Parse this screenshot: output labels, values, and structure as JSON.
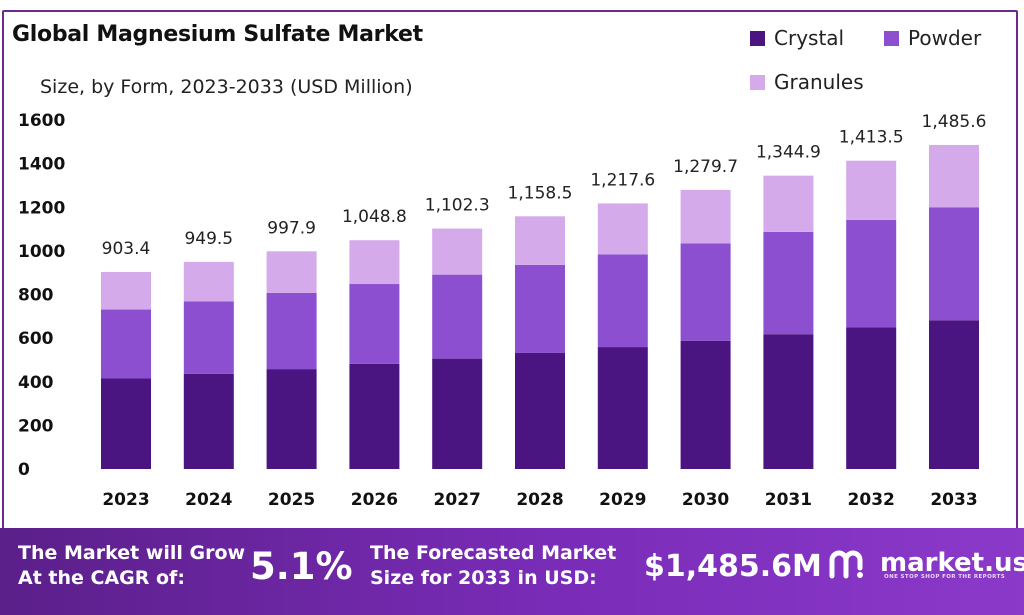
{
  "title": "Global Magnesium Sulfate Market",
  "subtitle": "Size, by Form, 2023-2033 (USD Million)",
  "colors": {
    "crystal": "#4a1580",
    "powder": "#8b4fcf",
    "granules": "#d4aaeb",
    "frame": "#6a2a8e"
  },
  "chart_data": {
    "type": "bar",
    "stacked": true,
    "categories": [
      "2023",
      "2024",
      "2025",
      "2026",
      "2027",
      "2028",
      "2029",
      "2030",
      "2031",
      "2032",
      "2033"
    ],
    "series": [
      {
        "name": "Crystal",
        "values": [
          415,
          436,
          458,
          482,
          506,
          532,
          559,
          588,
          618,
          649,
          682
        ]
      },
      {
        "name": "Powder",
        "values": [
          316,
          332,
          349,
          366,
          385,
          404,
          425,
          446,
          469,
          493,
          518
        ]
      },
      {
        "name": "Granules",
        "values": [
          172.4,
          181.5,
          190.9,
          200.8,
          211.3,
          222.5,
          233.6,
          245.7,
          257.9,
          271.5,
          285.6
        ]
      }
    ],
    "totals": [
      "903.4",
      "949.5",
      "997.9",
      "1,048.8",
      "1,102.3",
      "1,158.5",
      "1,217.6",
      "1,279.7",
      "1,344.9",
      "1,413.5",
      "1,485.6"
    ],
    "ylim": [
      0,
      1600
    ],
    "yticks": [
      0,
      200,
      400,
      600,
      800,
      1000,
      1200,
      1400,
      1600
    ],
    "grid": false,
    "legend_position": "top-right"
  },
  "legend": {
    "crystal": "Crystal",
    "powder": "Powder",
    "granules": "Granules"
  },
  "footer": {
    "cagr_label_line1": "The Market will Grow",
    "cagr_label_line2": "At the CAGR of:",
    "cagr_value": "5.1%",
    "forecast_label_line1": "The Forecasted Market",
    "forecast_label_line2": "Size for 2033 in USD:",
    "forecast_value": "$1,485.6M",
    "brand": "market.us",
    "brand_tagline": "ONE STOP SHOP FOR THE REPORTS"
  }
}
